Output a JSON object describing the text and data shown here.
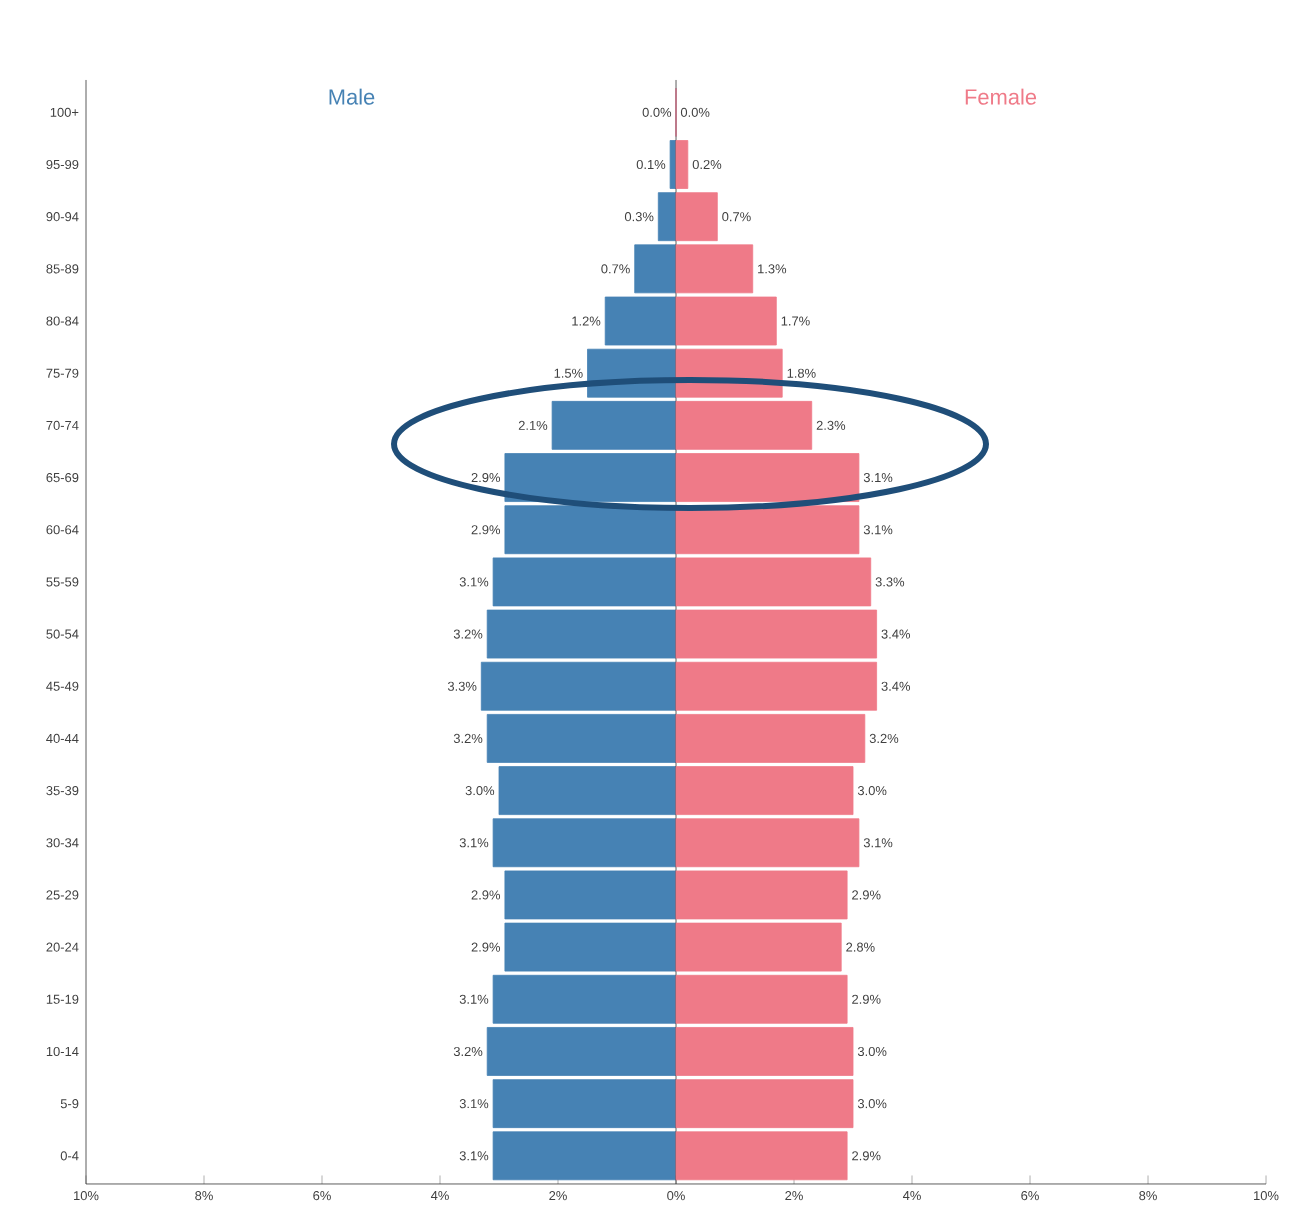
{
  "chart_data": [
    {
      "type": "bar",
      "orientation": "horizontal",
      "categories": [
        "100+",
        "95-99",
        "90-94",
        "85-89",
        "80-84",
        "75-79",
        "70-74",
        "65-69",
        "60-64",
        "55-59",
        "50-54",
        "45-49",
        "40-44",
        "35-39",
        "30-34",
        "25-29",
        "20-24",
        "15-19",
        "10-14",
        "5-9",
        "0-4"
      ],
      "series": [
        {
          "name": "Male",
          "color": "#4682b4",
          "values": [
            0.0,
            0.1,
            0.3,
            0.7,
            1.2,
            1.5,
            2.1,
            2.9,
            2.9,
            3.1,
            3.2,
            3.3,
            3.2,
            3.0,
            3.1,
            2.9,
            2.9,
            3.1,
            3.2,
            3.1,
            3.1
          ],
          "value_labels": [
            "0.0%",
            "0.1%",
            "0.3%",
            "0.7%",
            "1.2%",
            "1.5%",
            "2.1%",
            "2.9%",
            "2.9%",
            "3.1%",
            "3.2%",
            "3.3%",
            "3.2%",
            "3.0%",
            "3.1%",
            "2.9%",
            "2.9%",
            "3.1%",
            "3.2%",
            "3.1%",
            "3.1%"
          ]
        }
      ],
      "xlim": [
        10,
        0
      ],
      "xticks": [
        {
          "value": 10,
          "label": "10%"
        },
        {
          "value": 8,
          "label": "8%"
        },
        {
          "value": 6,
          "label": "6%"
        },
        {
          "value": 4,
          "label": "4%"
        },
        {
          "value": 2,
          "label": "2%"
        }
      ],
      "grid": false
    },
    {
      "type": "bar",
      "orientation": "horizontal",
      "categories": [
        null,
        null,
        null,
        null,
        null,
        null,
        null,
        null,
        null,
        null,
        null,
        null,
        null,
        null,
        null,
        null,
        null,
        null,
        null,
        null,
        null
      ],
      "series": [
        {
          "name": "Female",
          "color": "#ef7a88",
          "values": [
            0.0,
            0.2,
            0.7,
            1.3,
            1.7,
            1.8,
            2.3,
            3.1,
            3.1,
            3.3,
            3.4,
            3.4,
            3.2,
            3.0,
            3.1,
            2.9,
            2.8,
            2.9,
            3.0,
            3.0,
            2.9
          ],
          "value_labels": [
            "0.0%",
            "0.2%",
            "0.7%",
            "1.3%",
            "1.7%",
            "1.8%",
            "2.3%",
            "3.1%",
            "3.1%",
            "3.3%",
            "3.4%",
            "3.4%",
            "3.2%",
            "3.0%",
            "3.1%",
            "2.9%",
            "2.8%",
            "2.9%",
            "3.0%",
            "3.0%",
            "2.9%"
          ]
        }
      ],
      "xlim": [
        0,
        10
      ],
      "xticks": [
        {
          "value": 0,
          "label": "0%"
        },
        {
          "value": 2,
          "label": "2%"
        },
        {
          "value": 4,
          "label": "4%"
        },
        {
          "value": 6,
          "label": "6%"
        },
        {
          "value": 8,
          "label": "8%"
        },
        {
          "value": 10,
          "label": "10%"
        }
      ],
      "grid": false,
      "tick_labels": "x"
    }
  ]
}
